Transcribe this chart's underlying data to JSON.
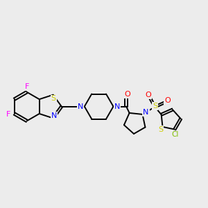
{
  "background_color": "#ECECEC",
  "C": "#000000",
  "N": "#0000FF",
  "O": "#FF0000",
  "S": "#CCCC00",
  "F": "#FF00FF",
  "Cl": "#7FBF00",
  "bond": "#000000",
  "figsize": [
    3.0,
    3.0
  ],
  "dpi": 100,
  "lw": 1.4,
  "dbl_off": 0.05
}
